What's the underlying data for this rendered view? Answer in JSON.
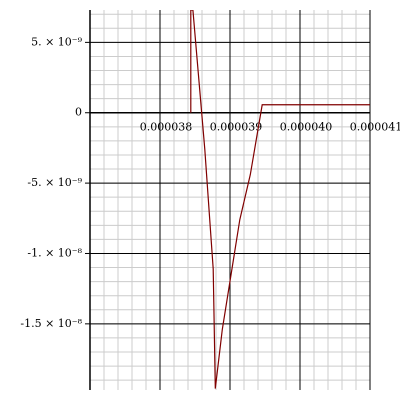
{
  "chart_data": {
    "type": "line",
    "x": [
      3.844e-05,
      3.844e-05,
      3.847e-05,
      3.864e-05,
      3.876e-05,
      3.879e-05,
      3.889e-05,
      3.914e-05,
      3.929e-05,
      3.946e-05,
      4.1e-05
    ],
    "series": [
      {
        "color": "#800000",
        "values": [
          0,
          7.3e-09,
          7.3e-09,
          -2.6e-09,
          -1.11e-08,
          -1.96e-08,
          -1.54e-08,
          -7.6e-09,
          -4.4e-09,
          5.7e-10,
          5.7e-10
        ]
      }
    ],
    "xlim": [
      3.7e-05,
      4.1e-05
    ],
    "ylim": [
      -1.97e-08,
      7.3e-09
    ],
    "xticks": [
      3.8e-05,
      3.9e-05,
      {
        "value": 4e-05,
        "label": "0.000040"
      },
      4.1e-05
    ],
    "yticks": [
      {
        "value": 5e-09,
        "label": "5. × 10⁻⁹"
      },
      0,
      {
        "value": -5e-09,
        "label": "-5. × 10⁻⁹"
      },
      {
        "value": -1e-08,
        "label": "-1. × 10⁻⁸"
      },
      {
        "value": -1.5e-08,
        "label": "-1.5 × 10⁻⁸"
      }
    ],
    "grid": true
  }
}
